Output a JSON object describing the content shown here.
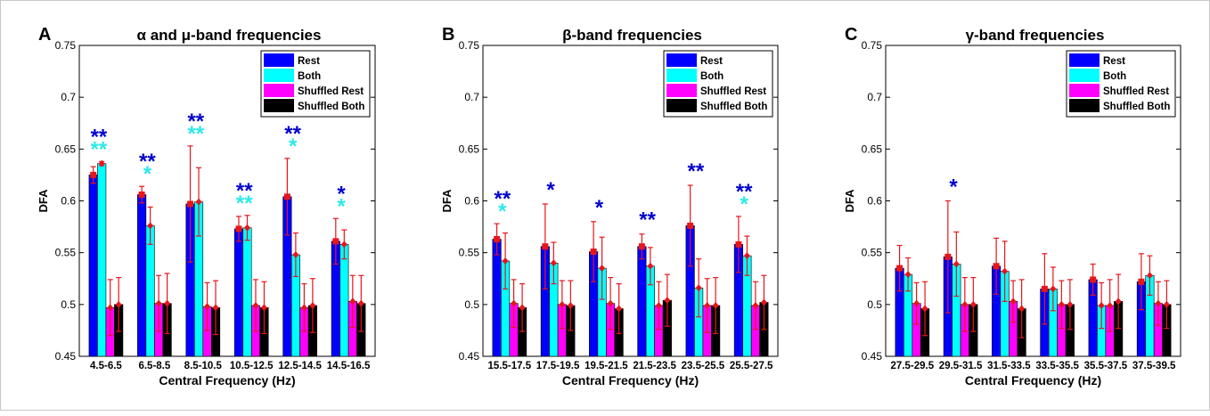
{
  "colors": {
    "rest": "#0000ff",
    "both": "#00ffff",
    "shuffled_rest": "#ff00ff",
    "shuffled_both": "#000000",
    "marker": "#e8151b",
    "star_rest": "#0000cc",
    "star_both": "#2ee8e8"
  },
  "chart_data": [
    {
      "type": "bar",
      "panel_letter": "A",
      "title": "α and μ-band frequencies",
      "xlabel": "Central Frequency (Hz)",
      "ylabel": "DFA",
      "ylim": [
        0.45,
        0.75
      ],
      "yticks": [
        "0.45",
        "0.5",
        "0.55",
        "0.6",
        "0.65",
        "0.7",
        "0.75"
      ],
      "grid": false,
      "legend_position": "top-right",
      "categories": [
        "4.5-6.5",
        "6.5-8.5",
        "8.5-10.5",
        "10.5-12.5",
        "12.5-14.5",
        "14.5-16.5"
      ],
      "series": [
        {
          "name": "Rest",
          "values": [
            0.625,
            0.606,
            0.597,
            0.573,
            0.604,
            0.561
          ],
          "err": [
            0.008,
            0.008,
            0.056,
            0.012,
            0.037,
            0.022
          ]
        },
        {
          "name": "Both",
          "values": [
            0.636,
            0.576,
            0.599,
            0.574,
            0.548,
            0.558
          ],
          "err": [
            0.002,
            0.018,
            0.033,
            0.012,
            0.021,
            0.014
          ]
        },
        {
          "name": "Shuffled Rest",
          "values": [
            0.497,
            0.501,
            0.498,
            0.499,
            0.497,
            0.503
          ],
          "err": [
            0.027,
            0.027,
            0.023,
            0.025,
            0.023,
            0.025
          ]
        },
        {
          "name": "Shuffled Both",
          "values": [
            0.5,
            0.501,
            0.497,
            0.497,
            0.499,
            0.501
          ],
          "err": [
            0.026,
            0.029,
            0.026,
            0.025,
            0.026,
            0.027
          ]
        }
      ],
      "annotations": [
        {
          "category": "4.5-6.5",
          "rest": "**",
          "both": "**"
        },
        {
          "category": "6.5-8.5",
          "rest": "**",
          "both": "*"
        },
        {
          "category": "8.5-10.5",
          "rest": "**",
          "both": "**"
        },
        {
          "category": "10.5-12.5",
          "rest": "**",
          "both": "**"
        },
        {
          "category": "12.5-14.5",
          "rest": "**",
          "both": "*"
        },
        {
          "category": "14.5-16.5",
          "rest": "*",
          "both": "*"
        }
      ]
    },
    {
      "type": "bar",
      "panel_letter": "B",
      "title": "β-band frequencies",
      "xlabel": "Central Frequency (Hz)",
      "ylabel": "DFA",
      "ylim": [
        0.45,
        0.75
      ],
      "yticks": [
        "0.45",
        "0.5",
        "0.55",
        "0.6",
        "0.65",
        "0.7",
        "0.75"
      ],
      "grid": false,
      "legend_position": "top-right",
      "categories": [
        "15.5-17.5",
        "17.5-19.5",
        "19.5-21.5",
        "21.5-23.5",
        "23.5-25.5",
        "25.5-27.5"
      ],
      "series": [
        {
          "name": "Rest",
          "values": [
            0.563,
            0.556,
            0.551,
            0.556,
            0.576,
            0.558
          ],
          "err": [
            0.015,
            0.041,
            0.029,
            0.012,
            0.039,
            0.027
          ]
        },
        {
          "name": "Both",
          "values": [
            0.542,
            0.54,
            0.535,
            0.537,
            0.516,
            0.547
          ],
          "err": [
            0.027,
            0.02,
            0.03,
            0.018,
            0.028,
            0.019
          ]
        },
        {
          "name": "Shuffled Rest",
          "values": [
            0.501,
            0.5,
            0.501,
            0.499,
            0.499,
            0.499
          ],
          "err": [
            0.023,
            0.023,
            0.025,
            0.023,
            0.026,
            0.023
          ]
        },
        {
          "name": "Shuffled Both",
          "values": [
            0.497,
            0.499,
            0.496,
            0.504,
            0.499,
            0.502
          ],
          "err": [
            0.023,
            0.024,
            0.024,
            0.025,
            0.027,
            0.026
          ]
        }
      ],
      "annotations": [
        {
          "category": "15.5-17.5",
          "rest": "**",
          "both": "*"
        },
        {
          "category": "17.5-19.5",
          "rest": "*",
          "both": ""
        },
        {
          "category": "19.5-21.5",
          "rest": "*",
          "both": ""
        },
        {
          "category": "21.5-23.5",
          "rest": "**",
          "both": ""
        },
        {
          "category": "23.5-25.5",
          "rest": "**",
          "both": ""
        },
        {
          "category": "25.5-27.5",
          "rest": "**",
          "both": "*"
        }
      ]
    },
    {
      "type": "bar",
      "panel_letter": "C",
      "title": "γ-band frequencies",
      "xlabel": "Central Frequency (Hz)",
      "ylabel": "DFA",
      "ylim": [
        0.45,
        0.75
      ],
      "yticks": [
        "0.45",
        "0.5",
        "0.55",
        "0.6",
        "0.65",
        "0.7",
        "0.75"
      ],
      "grid": false,
      "legend_position": "top-right",
      "categories": [
        "27.5-29.5",
        "29.5-31.5",
        "31.5-33.5",
        "33.5-35.5",
        "35.5-37.5",
        "37.5-39.5"
      ],
      "series": [
        {
          "name": "Rest",
          "values": [
            0.535,
            0.546,
            0.537,
            0.515,
            0.524,
            0.522
          ],
          "err": [
            0.022,
            0.054,
            0.027,
            0.034,
            0.015,
            0.027
          ]
        },
        {
          "name": "Both",
          "values": [
            0.529,
            0.539,
            0.532,
            0.515,
            0.499,
            0.528
          ],
          "err": [
            0.016,
            0.031,
            0.029,
            0.021,
            0.022,
            0.019
          ]
        },
        {
          "name": "Shuffled Rest",
          "values": [
            0.501,
            0.5,
            0.503,
            0.5,
            0.499,
            0.501
          ],
          "err": [
            0.02,
            0.026,
            0.02,
            0.023,
            0.025,
            0.021
          ]
        },
        {
          "name": "Shuffled Both",
          "values": [
            0.496,
            0.5,
            0.496,
            0.5,
            0.503,
            0.5
          ],
          "err": [
            0.026,
            0.026,
            0.028,
            0.024,
            0.026,
            0.023
          ]
        }
      ],
      "annotations": [
        {
          "category": "27.5-29.5",
          "rest": "",
          "both": ""
        },
        {
          "category": "29.5-31.5",
          "rest": "*",
          "both": ""
        },
        {
          "category": "31.5-33.5",
          "rest": "",
          "both": ""
        },
        {
          "category": "33.5-35.5",
          "rest": "",
          "both": ""
        },
        {
          "category": "35.5-37.5",
          "rest": "",
          "both": ""
        },
        {
          "category": "37.5-39.5",
          "rest": "",
          "both": ""
        }
      ]
    }
  ]
}
